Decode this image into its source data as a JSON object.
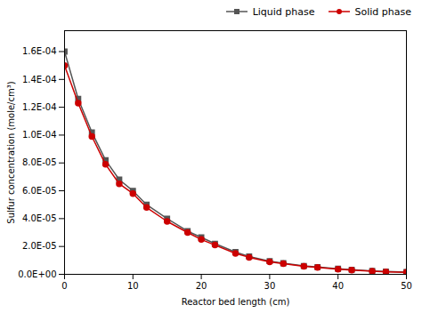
{
  "chart_data": {
    "type": "line",
    "x": [
      0,
      2,
      4,
      6,
      8,
      10,
      12,
      15,
      18,
      20,
      22,
      25,
      27,
      30,
      32,
      35,
      37,
      40,
      42,
      45,
      47,
      50
    ],
    "series": [
      {
        "name": "Liquid phase",
        "color": "#555555",
        "marker": "square",
        "line_style": "solid",
        "values": [
          0.00016,
          0.000126,
          0.000102,
          8.2e-05,
          6.8e-05,
          6e-05,
          5e-05,
          4e-05,
          3.1e-05,
          2.65e-05,
          2.2e-05,
          1.6e-05,
          1.28e-05,
          9.5e-06,
          8e-06,
          6e-06,
          5.2e-06,
          4e-06,
          3.3e-06,
          2.4e-06,
          2e-06,
          1.6e-06
        ]
      },
      {
        "name": "Solid phase",
        "color": "#cc0000",
        "marker": "circle",
        "line_style": "solid",
        "values": [
          0.00015,
          0.000123,
          9.9e-05,
          7.9e-05,
          6.5e-05,
          5.8e-05,
          4.8e-05,
          3.8e-05,
          3e-05,
          2.5e-05,
          2.1e-05,
          1.5e-05,
          1.22e-05,
          9e-06,
          7.6e-06,
          5.8e-06,
          4.9e-06,
          3.7e-06,
          3.1e-06,
          2.2e-06,
          1.8e-06,
          1.4e-06
        ]
      }
    ],
    "xlabel": "Reactor bed length (cm)",
    "ylabel": "Sulfur concentration (mole/cm³)",
    "xlim": [
      0,
      50
    ],
    "xticks": [
      0,
      10,
      20,
      30,
      40,
      50
    ],
    "ylim": [
      0,
      0.000175
    ],
    "yticks": [
      {
        "value": 0.0,
        "label": "0.0E+00"
      },
      {
        "value": 2e-05,
        "label": "2.0E-05"
      },
      {
        "value": 4e-05,
        "label": "4.0E-05"
      },
      {
        "value": 6e-05,
        "label": "6.0E-05"
      },
      {
        "value": 8e-05,
        "label": "8.0E-05"
      },
      {
        "value": 0.0001,
        "label": "1.0E-04"
      },
      {
        "value": 0.00012,
        "label": "1.2E-04"
      },
      {
        "value": 0.00014,
        "label": "1.4E-04"
      },
      {
        "value": 0.00016,
        "label": "1.6E-04"
      }
    ],
    "grid": false,
    "legend": "upper right"
  }
}
